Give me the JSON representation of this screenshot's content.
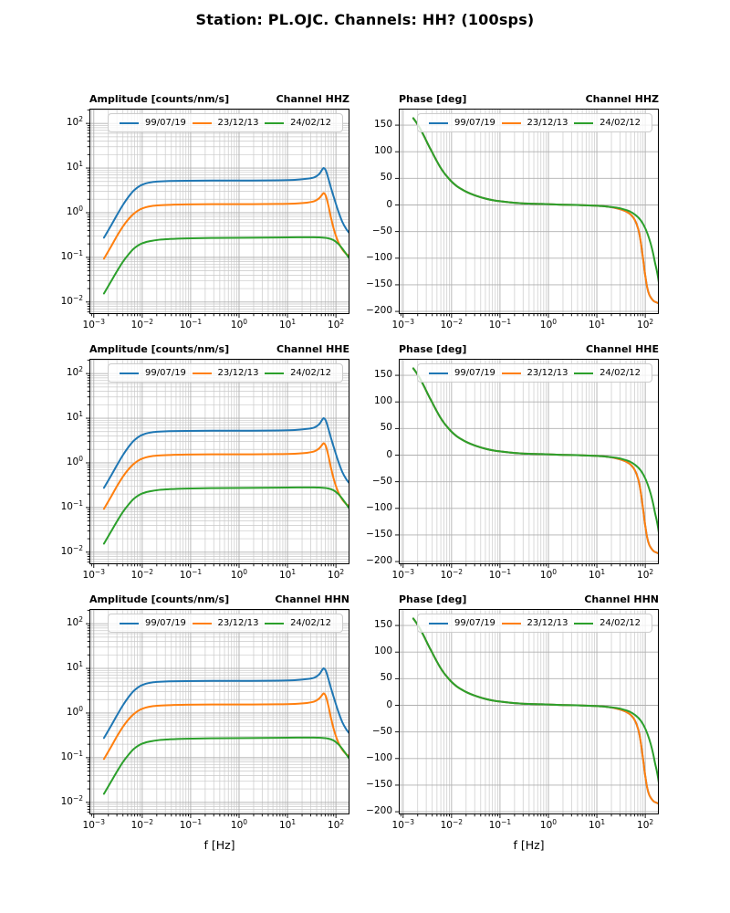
{
  "suptitle": "Station: PL.OJC. Channels: HH? (100sps)",
  "colors": {
    "series": [
      "#1f77b4",
      "#ff7f0e",
      "#2ca02c"
    ],
    "grid_major": "#b0b0b0",
    "grid_minor": "#c9c9c9",
    "spine": "#000000",
    "legend_edge": "#cccccc",
    "background": "#ffffff"
  },
  "legend": {
    "labels": [
      "99/07/19",
      "23/12/13",
      "24/02/12"
    ]
  },
  "channels": [
    "HHZ",
    "HHE",
    "HHN"
  ],
  "chart_data": {
    "type": "line",
    "grid": "major+minor log grid",
    "legend_position": "upper center, horizontal, 3 columns",
    "x_axis": {
      "scale": "log",
      "label": "f [Hz]",
      "lim_log10": [
        -3.09,
        2.28
      ],
      "ticks": [
        {
          "log10": -3,
          "label": "10^−3"
        },
        {
          "log10": -2,
          "label": "10^−2"
        },
        {
          "log10": -1,
          "label": "10^−1"
        },
        {
          "log10": 0,
          "label": "10^0"
        },
        {
          "log10": 1,
          "label": "10^1"
        },
        {
          "log10": 2,
          "label": "10^2"
        }
      ]
    },
    "amplitude_axis": {
      "scale": "log",
      "title": "Amplitude [counts/nm/s]",
      "lim_log10": [
        -2.27,
        2.33
      ],
      "ticks": [
        {
          "log10": 2,
          "label": "10^2"
        },
        {
          "log10": 1,
          "label": "10^1"
        },
        {
          "log10": 0,
          "label": "10^0"
        },
        {
          "log10": -1,
          "label": "10^−1"
        },
        {
          "log10": -2,
          "label": "10^−2"
        }
      ]
    },
    "phase_axis": {
      "scale": "linear",
      "title": "Phase [deg]",
      "lim": [
        -205,
        181
      ],
      "ticks": [
        {
          "v": 150,
          "label": "150"
        },
        {
          "v": 100,
          "label": "100"
        },
        {
          "v": 50,
          "label": "50"
        },
        {
          "v": 0,
          "label": "0"
        },
        {
          "v": -50,
          "label": "−50"
        },
        {
          "v": -100,
          "label": "−100"
        },
        {
          "v": -150,
          "label": "−150"
        },
        {
          "v": -200,
          "label": "−200"
        }
      ]
    },
    "amplitude_series": [
      {
        "name": "99/07/19",
        "color": "#1f77b4",
        "points_log10f_log10A": [
          [
            -2.79,
            -0.56
          ],
          [
            -2.65,
            -0.3
          ],
          [
            -2.52,
            -0.05
          ],
          [
            -2.4,
            0.17
          ],
          [
            -2.28,
            0.36
          ],
          [
            -2.17,
            0.5
          ],
          [
            -2.05,
            0.6
          ],
          [
            -1.93,
            0.655
          ],
          [
            -1.8,
            0.685
          ],
          [
            -1.65,
            0.7
          ],
          [
            -1.45,
            0.71
          ],
          [
            -1.1,
            0.715
          ],
          [
            -0.5,
            0.72
          ],
          [
            0.2,
            0.72
          ],
          [
            0.8,
            0.725
          ],
          [
            1.15,
            0.735
          ],
          [
            1.4,
            0.76
          ],
          [
            1.55,
            0.79
          ],
          [
            1.65,
            0.86
          ],
          [
            1.72,
            0.97
          ],
          [
            1.75,
            1.0
          ],
          [
            1.79,
            0.95
          ],
          [
            1.84,
            0.78
          ],
          [
            1.9,
            0.55
          ],
          [
            1.97,
            0.3
          ],
          [
            2.05,
            0.03
          ],
          [
            2.13,
            -0.2
          ],
          [
            2.21,
            -0.36
          ],
          [
            2.28,
            -0.46
          ]
        ]
      },
      {
        "name": "23/12/13",
        "color": "#ff7f0e",
        "points_log10f_log10A": [
          [
            -2.79,
            -1.03
          ],
          [
            -2.65,
            -0.77
          ],
          [
            -2.52,
            -0.52
          ],
          [
            -2.4,
            -0.31
          ],
          [
            -2.28,
            -0.14
          ],
          [
            -2.17,
            -0.02
          ],
          [
            -2.05,
            0.07
          ],
          [
            -1.93,
            0.12
          ],
          [
            -1.8,
            0.15
          ],
          [
            -1.65,
            0.165
          ],
          [
            -1.45,
            0.175
          ],
          [
            -1.1,
            0.185
          ],
          [
            -0.5,
            0.19
          ],
          [
            0.2,
            0.19
          ],
          [
            0.8,
            0.195
          ],
          [
            1.15,
            0.205
          ],
          [
            1.4,
            0.225
          ],
          [
            1.55,
            0.255
          ],
          [
            1.65,
            0.32
          ],
          [
            1.72,
            0.41
          ],
          [
            1.75,
            0.44
          ],
          [
            1.79,
            0.38
          ],
          [
            1.84,
            0.18
          ],
          [
            1.9,
            -0.12
          ],
          [
            1.97,
            -0.42
          ],
          [
            2.05,
            -0.66
          ],
          [
            2.13,
            -0.82
          ],
          [
            2.21,
            -0.92
          ],
          [
            2.28,
            -0.97
          ]
        ]
      },
      {
        "name": "24/02/12",
        "color": "#2ca02c",
        "points_log10f_log10A": [
          [
            -2.79,
            -1.81
          ],
          [
            -2.65,
            -1.55
          ],
          [
            -2.52,
            -1.31
          ],
          [
            -2.4,
            -1.1
          ],
          [
            -2.28,
            -0.93
          ],
          [
            -2.17,
            -0.8
          ],
          [
            -2.05,
            -0.71
          ],
          [
            -1.93,
            -0.66
          ],
          [
            -1.8,
            -0.63
          ],
          [
            -1.65,
            -0.605
          ],
          [
            -1.45,
            -0.59
          ],
          [
            -1.1,
            -0.575
          ],
          [
            -0.5,
            -0.565
          ],
          [
            0.2,
            -0.56
          ],
          [
            0.8,
            -0.555
          ],
          [
            1.2,
            -0.55
          ],
          [
            1.5,
            -0.55
          ],
          [
            1.7,
            -0.555
          ],
          [
            1.85,
            -0.575
          ],
          [
            1.95,
            -0.615
          ],
          [
            2.05,
            -0.7
          ],
          [
            2.13,
            -0.8
          ],
          [
            2.21,
            -0.92
          ],
          [
            2.28,
            -1.03
          ]
        ]
      }
    ],
    "phase_series": [
      {
        "name": "99/07/19",
        "color": "#1f77b4",
        "points_log10f_deg": [
          [
            -2.79,
            163
          ],
          [
            -2.72,
            154
          ],
          [
            -2.64,
            142
          ],
          [
            -2.56,
            128
          ],
          [
            -2.48,
            113
          ],
          [
            -2.4,
            99
          ],
          [
            -2.32,
            85
          ],
          [
            -2.24,
            72
          ],
          [
            -2.16,
            61
          ],
          [
            -2.08,
            52
          ],
          [
            -2.0,
            44
          ],
          [
            -1.9,
            36
          ],
          [
            -1.8,
            30
          ],
          [
            -1.7,
            25
          ],
          [
            -1.6,
            21
          ],
          [
            -1.45,
            16
          ],
          [
            -1.3,
            12
          ],
          [
            -1.15,
            9
          ],
          [
            -1.0,
            7
          ],
          [
            -0.8,
            5
          ],
          [
            -0.6,
            3.5
          ],
          [
            -0.4,
            2.5
          ],
          [
            -0.2,
            2
          ],
          [
            0.0,
            1.5
          ],
          [
            0.3,
            0.5
          ],
          [
            0.6,
            0
          ],
          [
            0.9,
            -1
          ],
          [
            1.1,
            -2
          ],
          [
            1.25,
            -3.5
          ],
          [
            1.4,
            -6
          ],
          [
            1.52,
            -9
          ],
          [
            1.62,
            -13
          ],
          [
            1.7,
            -18
          ],
          [
            1.77,
            -26
          ],
          [
            1.83,
            -38
          ],
          [
            1.88,
            -55
          ],
          [
            1.92,
            -78
          ],
          [
            1.96,
            -105
          ],
          [
            2.0,
            -133
          ],
          [
            2.04,
            -155
          ],
          [
            2.08,
            -168
          ],
          [
            2.13,
            -176
          ],
          [
            2.18,
            -181
          ],
          [
            2.23,
            -183
          ],
          [
            2.28,
            -185
          ]
        ]
      },
      {
        "name": "23/12/13",
        "color": "#ff7f0e",
        "points_log10f_deg": [
          [
            -2.79,
            163
          ],
          [
            -2.72,
            154
          ],
          [
            -2.64,
            142
          ],
          [
            -2.56,
            128
          ],
          [
            -2.48,
            113
          ],
          [
            -2.4,
            99
          ],
          [
            -2.32,
            85
          ],
          [
            -2.24,
            72
          ],
          [
            -2.16,
            61
          ],
          [
            -2.08,
            52
          ],
          [
            -2.0,
            44
          ],
          [
            -1.9,
            36
          ],
          [
            -1.8,
            30
          ],
          [
            -1.7,
            25
          ],
          [
            -1.6,
            21
          ],
          [
            -1.45,
            16
          ],
          [
            -1.3,
            12
          ],
          [
            -1.15,
            9
          ],
          [
            -1.0,
            7
          ],
          [
            -0.8,
            5
          ],
          [
            -0.6,
            3.5
          ],
          [
            -0.4,
            2.5
          ],
          [
            -0.2,
            2
          ],
          [
            0.0,
            1.5
          ],
          [
            0.3,
            0.5
          ],
          [
            0.6,
            0
          ],
          [
            0.9,
            -1
          ],
          [
            1.1,
            -2
          ],
          [
            1.25,
            -3.5
          ],
          [
            1.4,
            -6
          ],
          [
            1.52,
            -9
          ],
          [
            1.62,
            -13
          ],
          [
            1.7,
            -18
          ],
          [
            1.77,
            -26
          ],
          [
            1.83,
            -38
          ],
          [
            1.88,
            -55
          ],
          [
            1.92,
            -78
          ],
          [
            1.96,
            -105
          ],
          [
            2.0,
            -133
          ],
          [
            2.04,
            -155
          ],
          [
            2.08,
            -168
          ],
          [
            2.13,
            -176
          ],
          [
            2.18,
            -181
          ],
          [
            2.23,
            -183
          ],
          [
            2.28,
            -185
          ]
        ]
      },
      {
        "name": "24/02/12",
        "color": "#2ca02c",
        "points_log10f_deg": [
          [
            -2.79,
            163
          ],
          [
            -2.72,
            154
          ],
          [
            -2.64,
            142
          ],
          [
            -2.56,
            128
          ],
          [
            -2.48,
            113
          ],
          [
            -2.4,
            99
          ],
          [
            -2.32,
            85
          ],
          [
            -2.24,
            72
          ],
          [
            -2.16,
            61
          ],
          [
            -2.08,
            52
          ],
          [
            -2.0,
            44
          ],
          [
            -1.9,
            36
          ],
          [
            -1.8,
            30
          ],
          [
            -1.7,
            25
          ],
          [
            -1.6,
            21
          ],
          [
            -1.45,
            16
          ],
          [
            -1.3,
            12
          ],
          [
            -1.15,
            9
          ],
          [
            -1.0,
            7
          ],
          [
            -0.8,
            5
          ],
          [
            -0.6,
            3.5
          ],
          [
            -0.4,
            2.5
          ],
          [
            -0.2,
            2
          ],
          [
            0.0,
            1.5
          ],
          [
            0.3,
            0.5
          ],
          [
            0.6,
            0
          ],
          [
            0.9,
            -1
          ],
          [
            1.1,
            -2
          ],
          [
            1.25,
            -3.5
          ],
          [
            1.4,
            -5
          ],
          [
            1.55,
            -8
          ],
          [
            1.68,
            -12
          ],
          [
            1.8,
            -19
          ],
          [
            1.9,
            -28
          ],
          [
            1.98,
            -40
          ],
          [
            2.05,
            -55
          ],
          [
            2.11,
            -72
          ],
          [
            2.16,
            -90
          ],
          [
            2.2,
            -108
          ],
          [
            2.23,
            -120
          ],
          [
            2.26,
            -134
          ],
          [
            2.28,
            -146
          ]
        ]
      }
    ],
    "subplots": [
      {
        "row": 0,
        "col": 0,
        "kind": "amp",
        "title_left": "Amplitude [counts/nm/s]",
        "title_right": "Channel HHZ",
        "channel": "HHZ"
      },
      {
        "row": 0,
        "col": 1,
        "kind": "phase",
        "title_left": "Phase [deg]",
        "title_right": "Channel HHZ",
        "channel": "HHZ"
      },
      {
        "row": 1,
        "col": 0,
        "kind": "amp",
        "title_left": "Amplitude [counts/nm/s]",
        "title_right": "Channel HHE",
        "channel": "HHE"
      },
      {
        "row": 1,
        "col": 1,
        "kind": "phase",
        "title_left": "Phase [deg]",
        "title_right": "Channel HHE",
        "channel": "HHE"
      },
      {
        "row": 2,
        "col": 0,
        "kind": "amp",
        "title_left": "Amplitude [counts/nm/s]",
        "title_right": "Channel HHN",
        "channel": "HHN",
        "xlabel": "f [Hz]"
      },
      {
        "row": 2,
        "col": 1,
        "kind": "phase",
        "title_left": "Phase [deg]",
        "title_right": "Channel HHN",
        "channel": "HHN",
        "xlabel": "f [Hz]"
      }
    ]
  }
}
